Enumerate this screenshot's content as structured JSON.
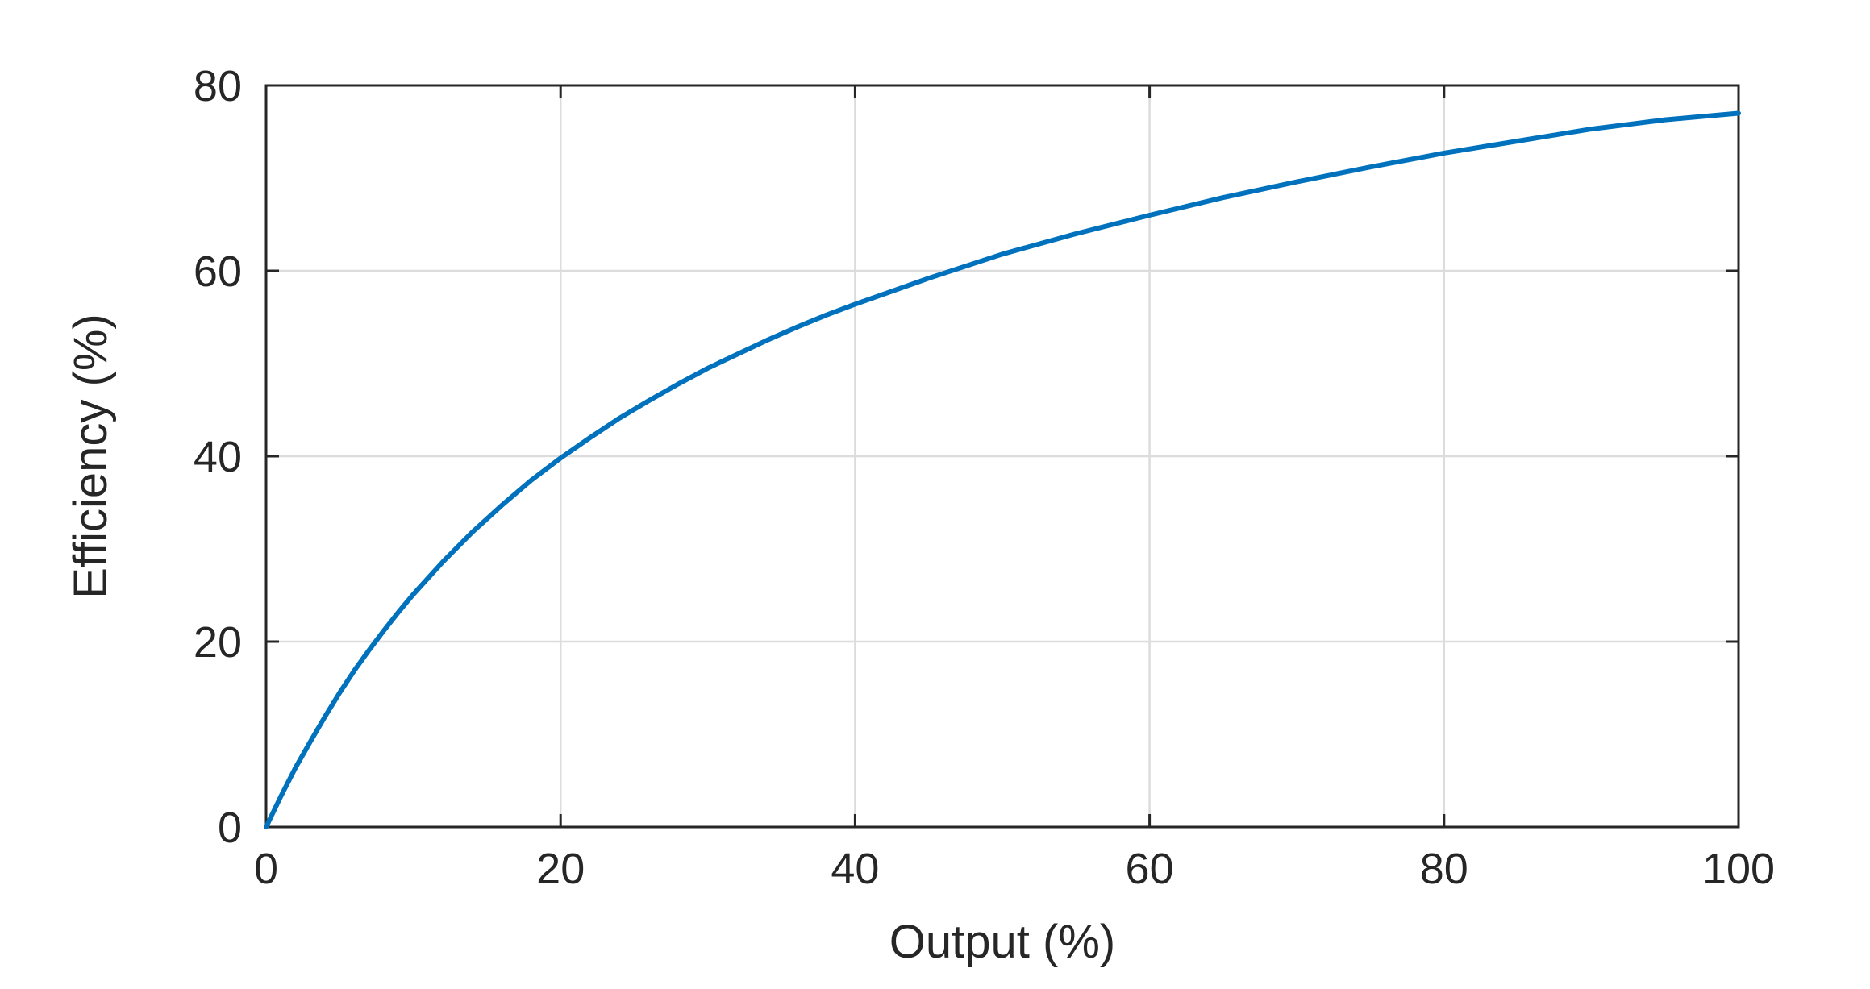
{
  "chart_data": {
    "type": "line",
    "title": "",
    "xlabel": "Output (%)",
    "ylabel": "Efficiency (%)",
    "xlim": [
      0,
      100
    ],
    "ylim": [
      0,
      80
    ],
    "xticks": [
      0,
      20,
      40,
      60,
      80,
      100
    ],
    "yticks": [
      0,
      20,
      40,
      60,
      80
    ],
    "xtick_labels": [
      "0",
      "20",
      "40",
      "60",
      "80",
      "100"
    ],
    "ytick_labels": [
      "0",
      "20",
      "40",
      "60",
      "80"
    ],
    "grid": true,
    "legend": "none",
    "colors": {
      "line": "#0072BD",
      "grid": "#dcdcdc",
      "axis": "#262626"
    },
    "series": [
      {
        "x": [
          0,
          1,
          2,
          3,
          4,
          5,
          6,
          7,
          8,
          9,
          10,
          12,
          14,
          16,
          18,
          20,
          22,
          24,
          26,
          28,
          30,
          32,
          34,
          36,
          38,
          40,
          45,
          50,
          55,
          60,
          65,
          70,
          75,
          80,
          85,
          90,
          95,
          100
        ],
        "values": [
          0,
          3.3,
          6.4,
          9.2,
          11.9,
          14.5,
          16.9,
          19.1,
          21.2,
          23.2,
          25.1,
          28.6,
          31.8,
          34.7,
          37.4,
          39.8,
          42.0,
          44.1,
          46.0,
          47.8,
          49.5,
          51.0,
          52.5,
          53.9,
          55.2,
          56.4,
          59.2,
          61.8,
          64.0,
          66.0,
          67.9,
          69.6,
          71.2,
          72.7,
          74.0,
          75.3,
          76.3,
          77.0
        ]
      }
    ]
  }
}
